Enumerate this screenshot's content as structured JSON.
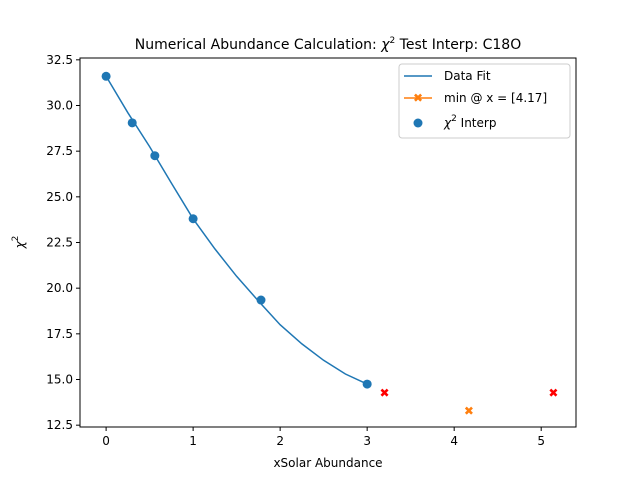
{
  "chart_data": {
    "type": "line",
    "title_prefix": "Numerical Abundance Calculation: ",
    "title_chi": "χ",
    "title_exp": "2",
    "title_suffix": " Test Interp: C18O",
    "xlabel": "xSolar Abundance",
    "ylabel_chi": "χ",
    "ylabel_exp": "2",
    "xlim": [
      -0.3,
      5.4
    ],
    "ylim": [
      12.4,
      32.6
    ],
    "xticks": [
      0,
      1,
      2,
      3,
      4,
      5
    ],
    "xtick_labels": [
      "0",
      "1",
      "2",
      "3",
      "4",
      "5"
    ],
    "yticks": [
      12.5,
      15.0,
      17.5,
      20.0,
      22.5,
      25.0,
      27.5,
      30.0,
      32.5
    ],
    "ytick_labels": [
      "12.5",
      "15.0",
      "17.5",
      "20.0",
      "22.5",
      "25.0",
      "27.5",
      "30.0",
      "32.5"
    ],
    "grid": false,
    "legend_position": "top-right",
    "colors": {
      "fit": "#1f77b4",
      "interp": "#1f77b4",
      "min": "#ff7f0e",
      "extra": "#ff0000"
    },
    "series": [
      {
        "name": "Data Fit",
        "kind": "line",
        "x": [
          0.0,
          0.25,
          0.5,
          0.75,
          1.0,
          1.25,
          1.5,
          1.75,
          2.0,
          2.25,
          2.5,
          2.75,
          3.0
        ],
        "y": [
          31.6,
          29.6,
          27.75,
          25.75,
          23.8,
          22.15,
          20.65,
          19.3,
          18.0,
          16.95,
          16.05,
          15.3,
          14.75
        ]
      },
      {
        "name_prefix": "min @ x = [4.17]",
        "kind": "marker-x",
        "x": [
          4.17
        ],
        "y": [
          13.3
        ]
      },
      {
        "name_chi": "χ",
        "name_exp": "2",
        "name_suffix": " Interp",
        "kind": "scatter",
        "x": [
          0.0,
          0.3,
          0.56,
          1.0,
          1.78,
          3.0
        ],
        "y": [
          31.6,
          29.05,
          27.25,
          23.8,
          19.35,
          14.75
        ]
      },
      {
        "kind": "extra-x",
        "x": [
          3.2,
          5.14
        ],
        "y": [
          14.3,
          14.3
        ]
      }
    ]
  }
}
